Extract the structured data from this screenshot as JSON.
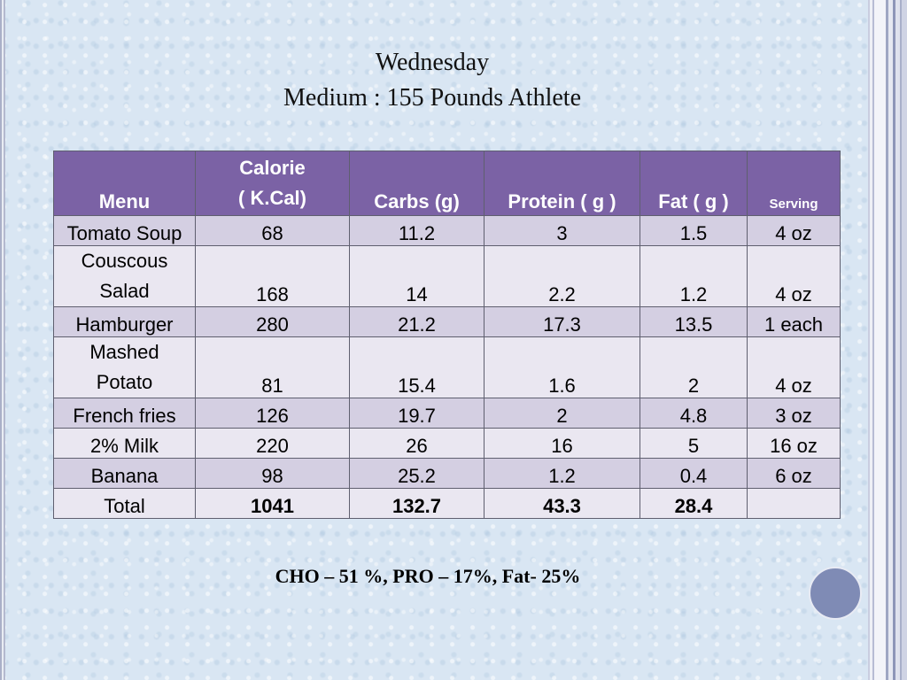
{
  "title": {
    "line1": "Wednesday",
    "line2": "Medium : 155 Pounds Athlete"
  },
  "table": {
    "headers": {
      "menu": "Menu",
      "calorie_line1": "Calorie",
      "calorie_line2": "( K.Cal)",
      "carbs": "Carbs (g)",
      "protein": "Protein ( g )",
      "fat": "Fat ( g )",
      "serving": "Serving"
    },
    "rows": [
      {
        "menu": "Tomato Soup",
        "calorie": "68",
        "carbs": "11.2",
        "protein": "3",
        "fat": "1.5",
        "serving": "4 oz"
      },
      {
        "menu_line1": "Couscous",
        "menu_line2": "Salad",
        "calorie": "168",
        "carbs": "14",
        "protein": "2.2",
        "fat": "1.2",
        "serving": "4 oz"
      },
      {
        "menu": "Hamburger",
        "calorie": "280",
        "carbs": "21.2",
        "protein": "17.3",
        "fat": "13.5",
        "serving": "1 each"
      },
      {
        "menu_line1": "Mashed",
        "menu_line2": "Potato",
        "calorie": "81",
        "carbs": "15.4",
        "protein": "1.6",
        "fat": "2",
        "serving": "4 oz"
      },
      {
        "menu": "French fries",
        "calorie": "126",
        "carbs": "19.7",
        "protein": "2",
        "fat": "4.8",
        "serving": "3 oz"
      },
      {
        "menu": "2% Milk",
        "calorie": "220",
        "carbs": "26",
        "protein": "16",
        "fat": "5",
        "serving": "16 oz"
      },
      {
        "menu": "Banana",
        "calorie": "98",
        "carbs": "25.2",
        "protein": "1.2",
        "fat": "0.4",
        "serving": "6 oz"
      }
    ],
    "total": {
      "menu": "Total",
      "calorie": "1041",
      "carbs": "132.7",
      "protein": "43.3",
      "fat": "28.4",
      "serving": ""
    }
  },
  "footer": "CHO – 51 %, PRO – 17%, Fat- 25%",
  "colors": {
    "header_bg": "#7b62a5",
    "row_dark": "#d4cfe2",
    "row_light": "#eae7f1",
    "accent_circle": "#7f8bb5"
  }
}
